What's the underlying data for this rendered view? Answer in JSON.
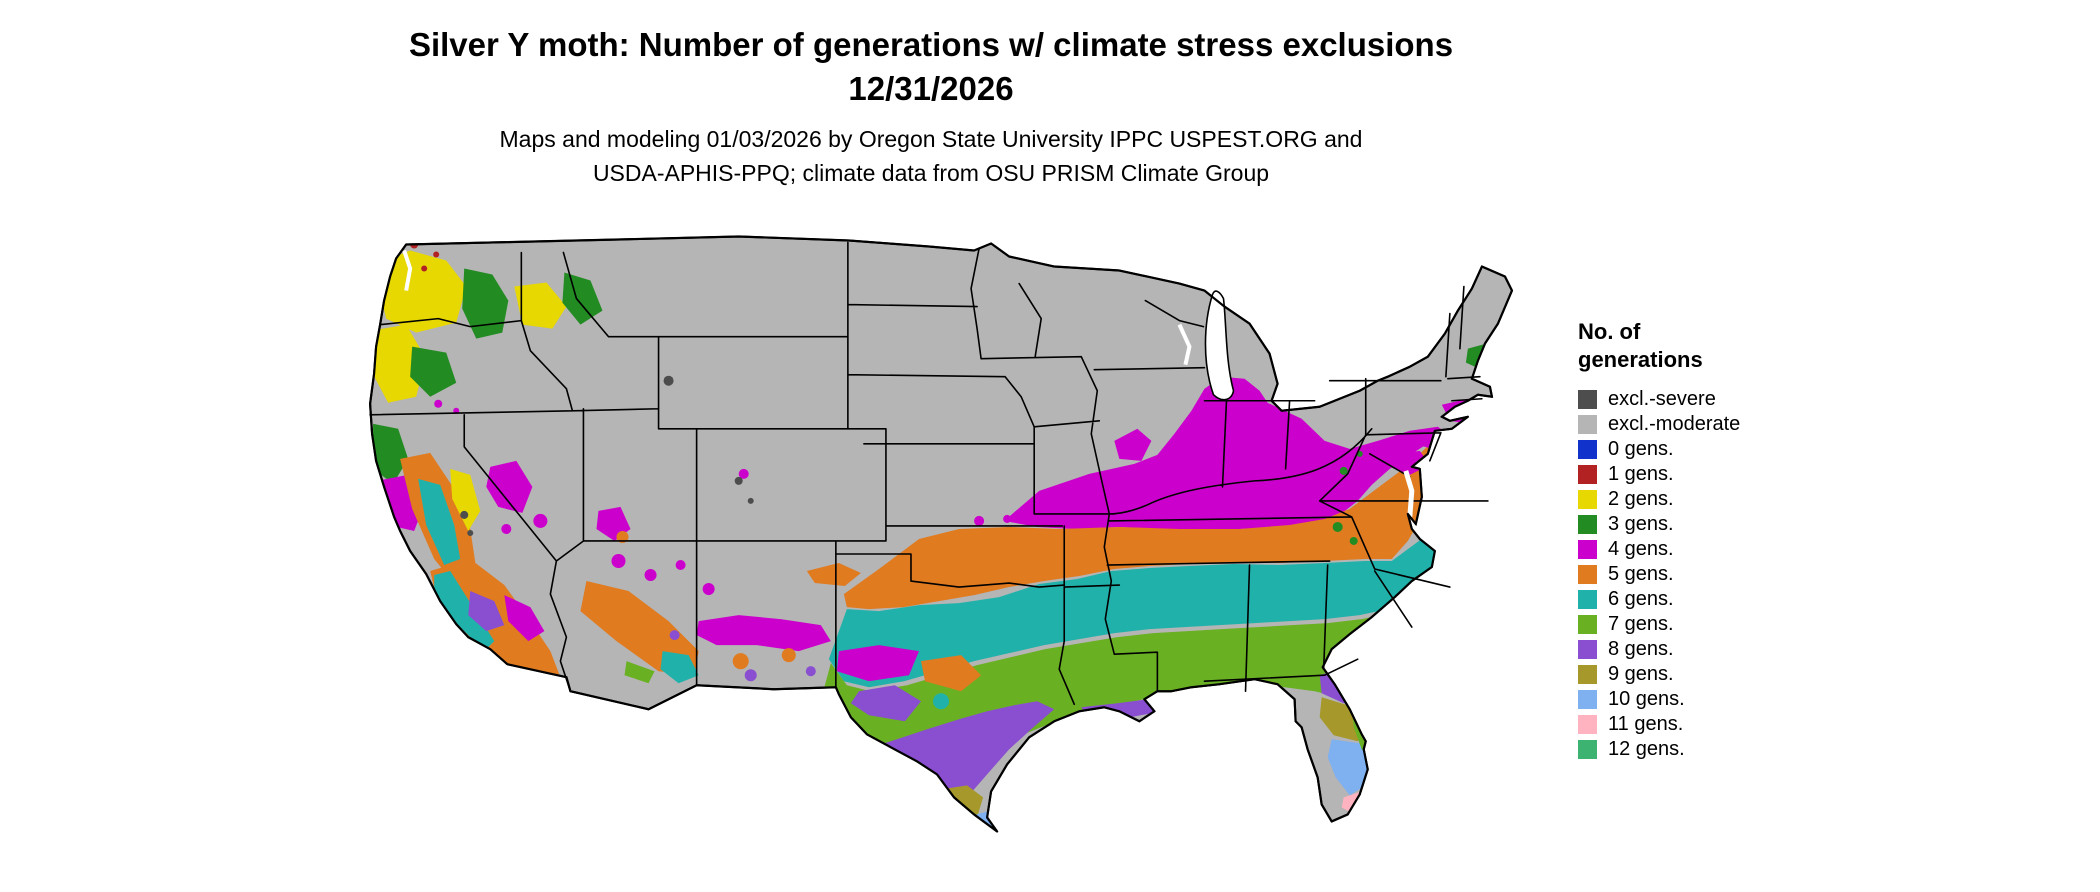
{
  "title": {
    "line1": "Silver Y moth: Number of generations w/ climate stress exclusions",
    "line2": "12/31/2026"
  },
  "subtitle": {
    "line1": "Maps and modeling 01/03/2026 by Oregon State University IPPC USPEST.ORG and",
    "line2": "USDA-APHIS-PPQ; climate data from OSU PRISM Climate Group"
  },
  "legend": {
    "title_line1": "No. of",
    "title_line2": "generations",
    "items": [
      {
        "label": "excl.-severe",
        "color": "#4d4d4d"
      },
      {
        "label": "excl.-moderate",
        "color": "#b5b5b5"
      },
      {
        "label": "0 gens.",
        "color": "#1133cc"
      },
      {
        "label": "1 gens.",
        "color": "#b22222"
      },
      {
        "label": "2 gens.",
        "color": "#e6d800"
      },
      {
        "label": "3 gens.",
        "color": "#228b22"
      },
      {
        "label": "4 gens.",
        "color": "#cc00cc"
      },
      {
        "label": "5 gens.",
        "color": "#e07b20"
      },
      {
        "label": "6 gens.",
        "color": "#20b2aa"
      },
      {
        "label": "7 gens.",
        "color": "#6ab023"
      },
      {
        "label": "8 gens.",
        "color": "#8a4fd0"
      },
      {
        "label": "9 gens.",
        "color": "#a6982b"
      },
      {
        "label": "10 gens.",
        "color": "#7fb0f0"
      },
      {
        "label": "11 gens.",
        "color": "#ffb3c0"
      },
      {
        "label": "12 gens.",
        "color": "#3cb371"
      }
    ]
  }
}
